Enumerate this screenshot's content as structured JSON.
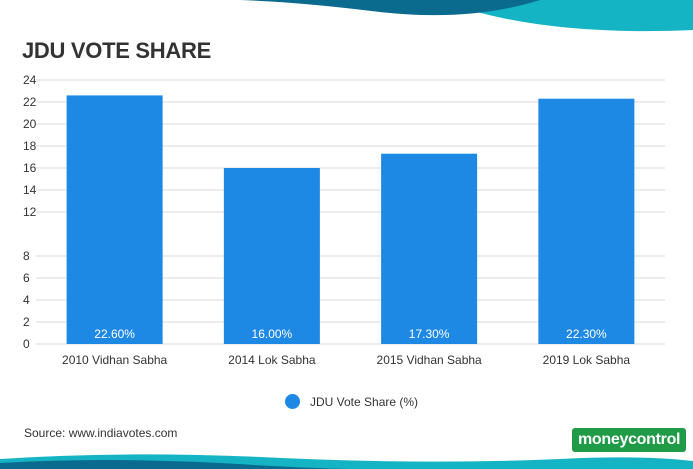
{
  "chart_data": {
    "type": "bar",
    "title": "JDU VOTE SHARE",
    "categories": [
      "2010 Vidhan Sabha",
      "2014 Lok Sabha",
      "2015 Vidhan Sabha",
      "2019 Lok Sabha"
    ],
    "series": [
      {
        "name": "JDU Vote Share (%)",
        "values": [
          22.6,
          16.0,
          17.3,
          22.3
        ],
        "color": "#1e88e5"
      }
    ],
    "data_labels": [
      "22.60%",
      "16.00%",
      "17.30%",
      "22.30%"
    ],
    "yticks": [
      0,
      2,
      4,
      6,
      8,
      12,
      14,
      16,
      18,
      20,
      22,
      24
    ],
    "ylim": [
      0,
      24
    ],
    "grid": true,
    "legend_position": "bottom"
  },
  "source": "Source: www.indiavotes.com",
  "logo": {
    "text": "moneycontrol",
    "color": "#1f9a46"
  },
  "colors": {
    "bar": "#1e88e5",
    "grid": "#d9d9d9",
    "wave_dark": "#0b6b8f",
    "wave_light": "#15b4c4"
  }
}
